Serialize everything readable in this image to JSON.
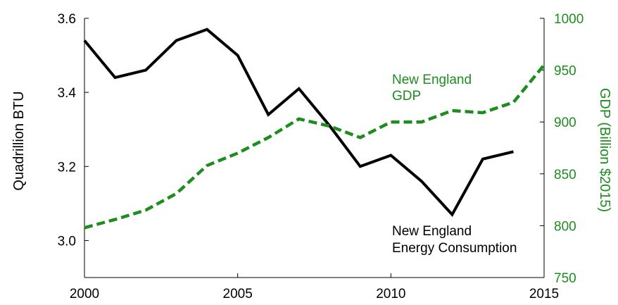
{
  "chart_data": {
    "type": "line",
    "xlabel": "",
    "ylabel": "Quadrillion BTU",
    "y2label": "GDP (Billion $2015)",
    "xlim": [
      2000,
      2015
    ],
    "ylim": [
      2.9,
      3.6
    ],
    "y2lim": [
      750,
      1000
    ],
    "x_ticks": [
      "2000",
      "2005",
      "2010",
      "2015"
    ],
    "y_ticks": [
      "3.0",
      "3.2",
      "3.4",
      "3.6"
    ],
    "y2_ticks": [
      "750",
      "800",
      "850",
      "900",
      "950",
      "1000"
    ],
    "grid": false,
    "series": [
      {
        "name": "New England Energy Consumption",
        "label_lines": [
          "New England",
          "Energy Consumption"
        ],
        "axis": "left",
        "color": "#000000",
        "style": "solid",
        "x": [
          2000,
          2001,
          2002,
          2003,
          2004,
          2005,
          2006,
          2007,
          2008,
          2009,
          2010,
          2011,
          2012,
          2013,
          2014
        ],
        "y": [
          3.54,
          3.44,
          3.46,
          3.54,
          3.57,
          3.5,
          3.34,
          3.41,
          3.31,
          3.2,
          3.23,
          3.16,
          3.07,
          3.22,
          3.24
        ]
      },
      {
        "name": "New England GDP",
        "label_lines": [
          "New England",
          "GDP"
        ],
        "axis": "right",
        "color": "#1e8c1e",
        "style": "dashed",
        "x": [
          2000,
          2001,
          2002,
          2003,
          2004,
          2005,
          2006,
          2007,
          2008,
          2009,
          2010,
          2011,
          2012,
          2013,
          2014,
          2015
        ],
        "y": [
          798,
          806,
          815,
          831,
          858,
          870,
          885,
          903,
          896,
          885,
          900,
          900,
          911,
          909,
          919,
          955
        ]
      }
    ]
  }
}
